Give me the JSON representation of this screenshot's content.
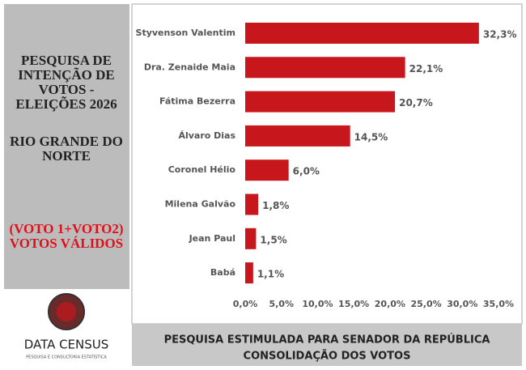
{
  "panel": {
    "title_lines": [
      "PESQUISA DE",
      "INTENÇÃO DE",
      "VOTOS -",
      "ELEIÇÕES 2026"
    ],
    "region_lines": [
      "RIO GRANDE DO",
      "NORTE"
    ],
    "note_lines": [
      "(VOTO 1+VOTO2)",
      "VOTOS VÁLIDOS"
    ],
    "logo": {
      "name": "DATA CENSUS",
      "tagline": "PESQUISA E CONSULTORIA ESTATÍSTICA"
    }
  },
  "footer": {
    "lines": [
      "PESQUISA ESTIMULADA PARA SENADOR DA REPÚBLICA",
      "CONSOLIDAÇÃO DOS VOTOS"
    ]
  },
  "chart_data": {
    "type": "hbar",
    "categories": [
      "Styvenson Valentim",
      "Dra. Zenaide Maia",
      "Fátima Bezerra",
      "Álvaro Dias",
      "Coronel Hélio",
      "Milena Galvão",
      "Jean Paul",
      "Babá"
    ],
    "values": [
      32.3,
      22.1,
      20.7,
      14.5,
      6.0,
      1.8,
      1.5,
      1.1
    ],
    "value_labels": [
      "32,3%",
      "22,1%",
      "20,7%",
      "14,5%",
      "6,0%",
      "1,8%",
      "1,5%",
      "1,1%"
    ],
    "color": "#c8161d",
    "xlim": [
      0,
      35
    ],
    "xticks": [
      {
        "value": 0,
        "label": "0,0%"
      },
      {
        "value": 5,
        "label": "5,0%"
      },
      {
        "value": 10,
        "label": "10,0%"
      },
      {
        "value": 15,
        "label": "15,0%"
      },
      {
        "value": 20,
        "label": "20,0%"
      },
      {
        "value": 25,
        "label": "25,0%"
      },
      {
        "value": 30,
        "label": "30,0%"
      },
      {
        "value": 35,
        "label": "35,0%"
      }
    ]
  }
}
